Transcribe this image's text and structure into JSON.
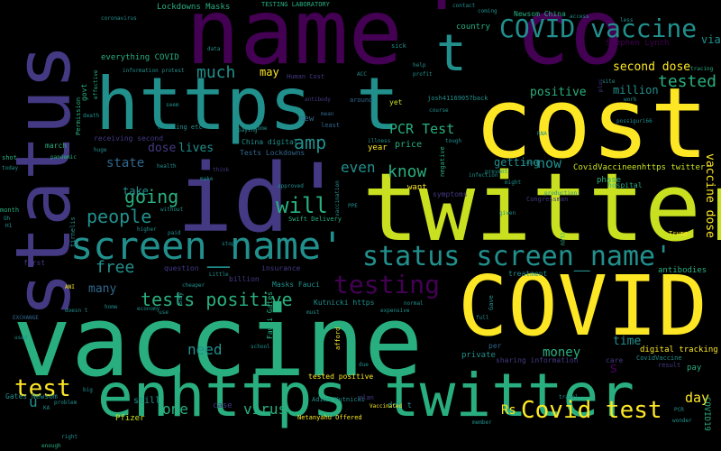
{
  "colors": {
    "background": "#000000",
    "yellow": "#fde725",
    "lime": "#c8e020",
    "green": "#29af7f",
    "teal": "#21908d",
    "blue": "#31688e",
    "indigo": "#443983",
    "purple": "#440154"
  },
  "words": [
    {
      "t": "vaccine"
    },
    {
      "t": "name"
    },
    {
      "t": "'"
    },
    {
      "t": "co"
    },
    {
      "t": "cost"
    },
    {
      "t": "twitter"
    },
    {
      "t": "COVID"
    },
    {
      "t": "id'"
    },
    {
      "t": "https t"
    },
    {
      "t": "status"
    },
    {
      "t": "enhttps twitter"
    },
    {
      "t": "screen_name'"
    },
    {
      "t": "status screen_name'"
    },
    {
      "t": "COVID vaccine"
    },
    {
      "t": "testing"
    },
    {
      "t": "t"
    },
    {
      "t": "Covid test"
    },
    {
      "t": "test"
    },
    {
      "t": "amp"
    },
    {
      "t": "will"
    },
    {
      "t": "tests positive"
    },
    {
      "t": "people"
    },
    {
      "t": "going"
    },
    {
      "t": "free"
    },
    {
      "t": "much"
    },
    {
      "t": "know"
    },
    {
      "t": "even"
    },
    {
      "t": "PCR Test"
    },
    {
      "t": "tested"
    },
    {
      "t": "second dose"
    },
    {
      "t": "million"
    },
    {
      "t": "positive"
    },
    {
      "t": "vaccine dose"
    },
    {
      "t": "now"
    },
    {
      "t": "getting"
    },
    {
      "t": "state"
    },
    {
      "t": "take"
    },
    {
      "t": "dose"
    },
    {
      "t": "lives"
    },
    {
      "t": "need"
    },
    {
      "t": "virus"
    },
    {
      "t": "one"
    },
    {
      "t": "money"
    },
    {
      "t": "time"
    },
    {
      "t": "day"
    },
    {
      "t": "many"
    },
    {
      "t": "u"
    },
    {
      "t": "Rs"
    },
    {
      "t": "s"
    },
    {
      "t": "may"
    },
    {
      "t": "via"
    },
    {
      "t": "everything COVID"
    },
    {
      "t": "Lockdowns Masks"
    },
    {
      "t": "TESTING LABORATORY"
    },
    {
      "t": "Newsom China"
    },
    {
      "t": "Stephen Lynch"
    },
    {
      "t": "country"
    },
    {
      "t": "CovidVaccineenhttps twitter"
    },
    {
      "t": "phase"
    },
    {
      "t": "hospital"
    },
    {
      "t": "digital tracking"
    },
    {
      "t": "antibodies"
    },
    {
      "t": "tested positive"
    },
    {
      "t": "Gates Newsom"
    },
    {
      "t": "Adina Kutnicki"
    },
    {
      "t": "Netanyahu Offered"
    },
    {
      "t": "Pfizer"
    },
    {
      "t": "case"
    },
    {
      "t": "still"
    },
    {
      "t": "don t"
    },
    {
      "t": "Tests Lockdowns"
    },
    {
      "t": "China digital"
    },
    {
      "t": "Human Cost"
    },
    {
      "t": "josh41169057back"
    },
    {
      "t": "receiving second"
    },
    {
      "t": "Swift Delivery"
    },
    {
      "t": "Masks Fauci"
    },
    {
      "t": "Kutnicki https"
    },
    {
      "t": "Fauci Gates"
    },
    {
      "t": "insurance"
    },
    {
      "t": "question"
    },
    {
      "t": "billion"
    },
    {
      "t": "year"
    },
    {
      "t": "price"
    },
    {
      "t": "want"
    },
    {
      "t": "symptoms"
    },
    {
      "t": "treatment"
    },
    {
      "t": "private"
    },
    {
      "t": "sharing information"
    },
    {
      "t": "pay"
    },
    {
      "t": "care"
    },
    {
      "t": "result"
    },
    {
      "t": "CovidVaccine"
    },
    {
      "t": "COVID19"
    },
    {
      "t": "month"
    },
    {
      "t": "govt"
    },
    {
      "t": "march"
    },
    {
      "t": "pandemic"
    },
    {
      "t": "health"
    },
    {
      "t": "tracking etc"
    },
    {
      "t": "information protest"
    },
    {
      "t": "coronavirus"
    },
    {
      "t": "EXCHANGE"
    },
    {
      "t": "first"
    },
    {
      "t": "shot"
    },
    {
      "t": "Permission"
    },
    {
      "t": "effective"
    },
    {
      "t": "mean"
    },
    {
      "t": "least"
    },
    {
      "t": "around"
    },
    {
      "t": "new"
    },
    {
      "t": "yet"
    },
    {
      "t": "think"
    },
    {
      "t": "make"
    },
    {
      "t": "paid"
    },
    {
      "t": "per"
    },
    {
      "t": "plan"
    },
    {
      "t": "Vaccinated"
    },
    {
      "t": "travel"
    },
    {
      "t": "member"
    },
    {
      "t": "enough"
    },
    {
      "t": "Trump"
    },
    {
      "t": "tracing"
    },
    {
      "t": "PCR"
    },
    {
      "t": "CLOV"
    },
    {
      "t": "Congressman"
    },
    {
      "t": "negative"
    },
    {
      "t": "might"
    },
    {
      "t": "production"
    },
    {
      "t": "data"
    },
    {
      "t": "sick"
    },
    {
      "t": "contact"
    },
    {
      "t": "coming"
    },
    {
      "t": "access"
    },
    {
      "t": "less"
    },
    {
      "t": "huge"
    },
    {
      "t": "plus"
    },
    {
      "t": "school"
    },
    {
      "t": "afford"
    },
    {
      "t": "due"
    },
    {
      "t": "expensive"
    },
    {
      "t": "normal"
    },
    {
      "t": "must"
    },
    {
      "t": "doesn t"
    },
    {
      "t": "use"
    },
    {
      "t": "say"
    },
    {
      "t": "economy"
    },
    {
      "t": "problem"
    },
    {
      "t": "right"
    },
    {
      "t": "KA"
    },
    {
      "t": "big"
    },
    {
      "t": "used"
    },
    {
      "t": "without"
    },
    {
      "t": "higher"
    },
    {
      "t": "full"
    },
    {
      "t": "Gave"
    },
    {
      "t": "given"
    },
    {
      "t": "stop"
    },
    {
      "t": "vaccination"
    },
    {
      "t": "approved"
    },
    {
      "t": "today"
    },
    {
      "t": "illness"
    },
    {
      "t": "course"
    },
    {
      "t": "profit"
    },
    {
      "t": "help"
    },
    {
      "t": "seem"
    },
    {
      "t": "paying"
    },
    {
      "t": "infection"
    },
    {
      "t": "prevent"
    },
    {
      "t": "Little"
    },
    {
      "t": "Oh"
    },
    {
      "t": "ANI"
    },
    {
      "t": "death"
    },
    {
      "t": "cheaper"
    },
    {
      "t": "home"
    },
    {
      "t": "possiguri66"
    },
    {
      "t": "site"
    },
    {
      "t": "work"
    },
    {
      "t": "wonder"
    },
    {
      "t": "tirnelis"
    },
    {
      "t": "antibody"
    },
    {
      "t": "ACC"
    },
    {
      "t": "come"
    },
    {
      "t": "tough"
    },
    {
      "t": "PPE"
    },
    {
      "t": "cause"
    },
    {
      "t": "RNA"
    },
    {
      "t": "H1"
    }
  ]
}
